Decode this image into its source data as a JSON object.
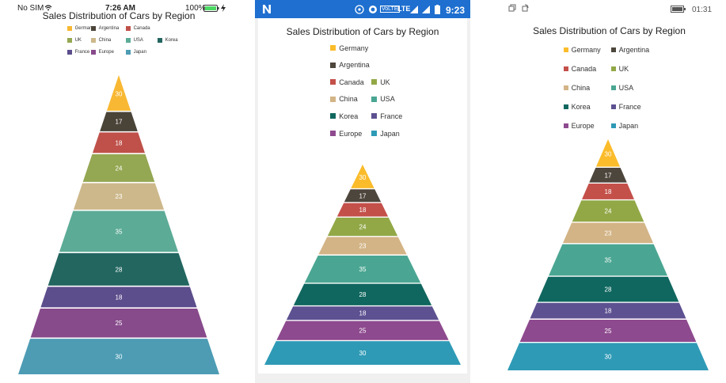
{
  "chart_data": [
    {
      "type": "pyramid",
      "title": "Sales Distribution of Cars by Region",
      "categories": [
        "Germany",
        "Argentina",
        "Canada",
        "UK",
        "China",
        "USA",
        "Korea",
        "France",
        "Europe",
        "Japan"
      ],
      "values": [
        30,
        17,
        18,
        24,
        23,
        35,
        28,
        18,
        25,
        30
      ],
      "colors": [
        "#f8b833",
        "#4a4338",
        "#bf514a",
        "#94a752",
        "#cdb88b",
        "#5cab96",
        "#236660",
        "#5c4d8c",
        "#874a8b",
        "#4d9cb4"
      ],
      "legend_position": "top"
    },
    {
      "type": "pyramid",
      "title": "Sales Distribution of Cars by Region",
      "categories": [
        "Germany",
        "Argentina",
        "Canada",
        "UK",
        "China",
        "USA",
        "Korea",
        "France",
        "Europe",
        "Japan"
      ],
      "values": [
        30,
        17,
        18,
        24,
        23,
        35,
        28,
        18,
        25,
        30
      ],
      "colors": [
        "#fbbc2b",
        "#4d463c",
        "#c4504a",
        "#92a847",
        "#d3b486",
        "#4aa692",
        "#10675f",
        "#5d5191",
        "#8e4a8e",
        "#2e9ab6"
      ],
      "legend_position": "top"
    },
    {
      "type": "pyramid",
      "title": "Sales Distribution of Cars by Region",
      "categories": [
        "Germany",
        "Argentina",
        "Canada",
        "UK",
        "China",
        "USA",
        "Korea",
        "France",
        "Europe",
        "Japan"
      ],
      "values": [
        30,
        17,
        18,
        24,
        23,
        35,
        28,
        18,
        25,
        30
      ],
      "colors": [
        "#fbbc2b",
        "#4d463c",
        "#c4504a",
        "#92a847",
        "#d3b486",
        "#4aa692",
        "#10675f",
        "#5d5191",
        "#8e4a8e",
        "#2e9ab6"
      ],
      "legend_position": "top"
    }
  ],
  "status_bars": {
    "ios": {
      "carrier": "No SIM",
      "time": "7:26 AM",
      "battery": "100%"
    },
    "android": {
      "network": "LTE",
      "volte": "VoLTE",
      "time": "9:23"
    },
    "windows": {
      "time": "01:31"
    }
  },
  "icons": [
    "wifi-icon",
    "battery-icon",
    "charging-icon",
    "n-logo-icon",
    "signal-icon",
    "notification-icon",
    "lock-rotation-icon"
  ]
}
